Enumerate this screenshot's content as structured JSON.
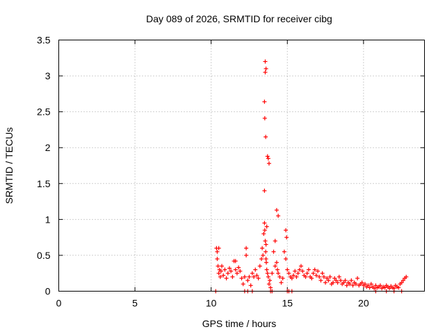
{
  "chart_data": {
    "type": "scatter",
    "title": "Day 089 of 2026, SRMTID for receiver cibg",
    "xlabel": "GPS time / hours",
    "ylabel": "SRMTID / TECUs",
    "xlim": [
      0,
      24
    ],
    "ylim": [
      0,
      3.5
    ],
    "x_ticks": [
      0,
      5,
      10,
      15,
      20
    ],
    "x_tick_labels": [
      "0",
      "5",
      "10",
      "15",
      "20"
    ],
    "y_ticks": [
      0,
      0.5,
      1,
      1.5,
      2,
      2.5,
      3,
      3.5
    ],
    "y_tick_labels": [
      "0",
      "0.5",
      "1",
      "1.5",
      "2",
      "2.5",
      "3",
      "3.5"
    ],
    "grid": true,
    "marker": "+",
    "series": [
      {
        "name": "SRMTID",
        "color": "#ff0000",
        "x": [
          10.35,
          10.4,
          10.45,
          10.5,
          10.55,
          10.6,
          10.65,
          10.7,
          10.8,
          10.9,
          11.0,
          11.1,
          11.2,
          11.3,
          11.4,
          11.5,
          11.6,
          11.7,
          11.8,
          11.9,
          12.0,
          12.1,
          12.2,
          12.3,
          12.4,
          12.5,
          12.6,
          12.7,
          12.8,
          12.9,
          13.0,
          13.1,
          13.2,
          13.3,
          13.35,
          13.4,
          13.45,
          13.5,
          13.52,
          13.55,
          13.58,
          13.6,
          13.62,
          13.65,
          13.7,
          13.75,
          13.8,
          13.85,
          13.9,
          14.0,
          14.1,
          14.2,
          14.3,
          14.35,
          14.4,
          14.5,
          14.6,
          14.7,
          14.8,
          14.9,
          15.0,
          15.1,
          15.2,
          15.3,
          15.4,
          15.5,
          15.6,
          15.7,
          15.8,
          15.9,
          16.0,
          16.1,
          16.2,
          16.3,
          16.4,
          16.5,
          16.6,
          16.7,
          16.8,
          16.9,
          17.0,
          17.1,
          17.2,
          17.3,
          17.4,
          17.5,
          17.6,
          17.7,
          17.8,
          17.9,
          18.0,
          18.1,
          18.2,
          18.3,
          18.4,
          18.5,
          18.6,
          18.7,
          18.8,
          18.9,
          19.0,
          19.1,
          19.2,
          19.3,
          19.4,
          19.5,
          19.6,
          19.7,
          19.8,
          19.9,
          20.0,
          20.1,
          20.2,
          20.3,
          20.4,
          20.5,
          20.6,
          20.7,
          20.8,
          20.9,
          21.0,
          21.1,
          21.2,
          21.3,
          21.4,
          21.5,
          21.6,
          21.7,
          21.8,
          21.9,
          22.0,
          22.1,
          22.2,
          22.3,
          22.4,
          22.5,
          22.6,
          22.7,
          22.8,
          10.3,
          12.2,
          12.4,
          12.7,
          13.9,
          14.0,
          15.0,
          15.1,
          15.3,
          20.8,
          21.5,
          22.0,
          22.5,
          13.55,
          13.6,
          13.55,
          13.5,
          13.52,
          13.58,
          13.7,
          13.75,
          13.8,
          13.5,
          14.3,
          14.4,
          14.2,
          14.9,
          14.95,
          13.6,
          13.65,
          10.4,
          10.5,
          11.6,
          12.3
        ],
        "y": [
          0.6,
          0.45,
          0.35,
          0.25,
          0.3,
          0.2,
          0.28,
          0.35,
          0.22,
          0.3,
          0.18,
          0.25,
          0.32,
          0.28,
          0.2,
          0.42,
          0.3,
          0.25,
          0.33,
          0.28,
          0.18,
          0.1,
          0.2,
          0.5,
          0.15,
          0.2,
          0.08,
          0.25,
          0.2,
          0.3,
          0.22,
          0.18,
          0.35,
          0.45,
          0.6,
          0.5,
          0.8,
          0.95,
          0.85,
          0.7,
          0.55,
          0.45,
          0.4,
          0.3,
          0.25,
          0.2,
          0.1,
          0.15,
          0.05,
          0.25,
          0.55,
          0.35,
          0.4,
          0.3,
          0.25,
          0.2,
          0.12,
          0.18,
          0.55,
          0.45,
          0.3,
          0.25,
          0.2,
          0.18,
          0.22,
          0.28,
          0.2,
          0.25,
          0.3,
          0.35,
          0.28,
          0.22,
          0.2,
          0.25,
          0.3,
          0.2,
          0.18,
          0.25,
          0.3,
          0.22,
          0.28,
          0.2,
          0.15,
          0.25,
          0.2,
          0.12,
          0.18,
          0.15,
          0.2,
          0.1,
          0.12,
          0.18,
          0.15,
          0.12,
          0.2,
          0.15,
          0.1,
          0.12,
          0.15,
          0.08,
          0.12,
          0.1,
          0.15,
          0.08,
          0.12,
          0.1,
          0.18,
          0.08,
          0.1,
          0.12,
          0.08,
          0.1,
          0.06,
          0.08,
          0.05,
          0.1,
          0.06,
          0.04,
          0.08,
          0.05,
          0.06,
          0.08,
          0.04,
          0.06,
          0.05,
          0.08,
          0.06,
          0.04,
          0.07,
          0.05,
          0.04,
          0.08,
          0.06,
          0.05,
          0.1,
          0.12,
          0.15,
          0.18,
          0.2,
          0.0,
          0.0,
          0.0,
          0.0,
          0.0,
          0.0,
          0.0,
          0.0,
          0.0,
          0.0,
          0.0,
          0.0,
          0.0,
          3.2,
          3.1,
          3.05,
          2.64,
          2.41,
          2.15,
          1.88,
          1.85,
          1.78,
          1.4,
          1.13,
          1.05,
          0.7,
          0.85,
          0.75,
          0.65,
          0.9,
          0.55,
          0.6,
          0.42,
          0.6
        ]
      }
    ]
  }
}
